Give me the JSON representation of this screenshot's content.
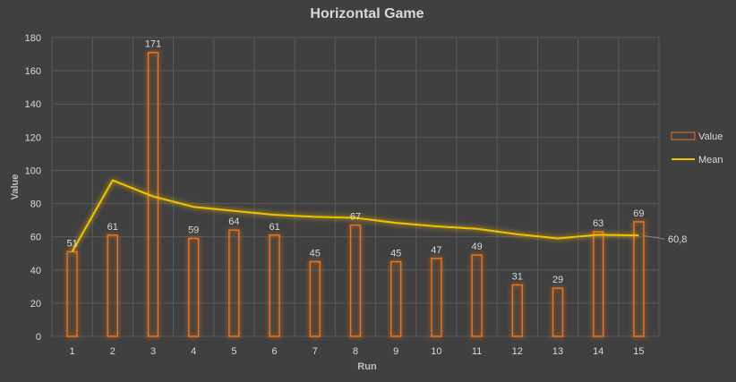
{
  "chart_data": {
    "type": "bar",
    "title": "Horizontal Game",
    "xlabel": "Run",
    "ylabel": "Value",
    "categories": [
      "1",
      "2",
      "3",
      "4",
      "5",
      "6",
      "7",
      "8",
      "9",
      "10",
      "11",
      "12",
      "13",
      "14",
      "15"
    ],
    "series": [
      {
        "name": "Value",
        "type": "bar",
        "values": [
          51,
          61,
          171,
          59,
          64,
          61,
          45,
          67,
          45,
          47,
          49,
          31,
          29,
          63,
          69
        ],
        "color": "#e8731f"
      },
      {
        "name": "Mean",
        "type": "line",
        "values": [
          51,
          94,
          84.3,
          78,
          75.6,
          73.2,
          72,
          71.4,
          68.4,
          66.3,
          64.8,
          61.5,
          59,
          61.2,
          60.8
        ],
        "color": "#f2c200"
      }
    ],
    "end_label": "60,8",
    "ylim": [
      0,
      180
    ],
    "yticks": [
      0,
      20,
      40,
      60,
      80,
      100,
      120,
      140,
      160,
      180
    ],
    "grid": true,
    "legend_position": "right"
  }
}
